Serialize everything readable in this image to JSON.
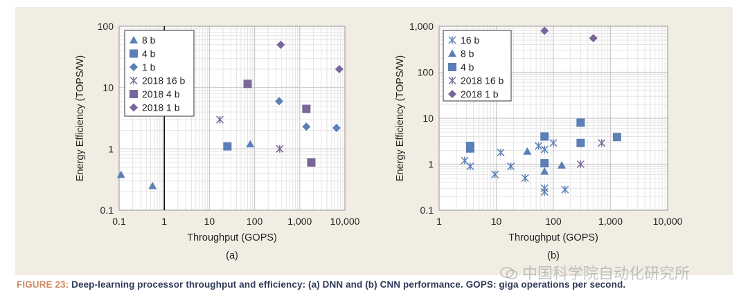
{
  "caption": {
    "label": "FIGURE 23:",
    "text": " Deep-learning processor throughput and efficiency: (a) DNN and (b) CNN performance. GOPS: giga operations per second."
  },
  "watermark": {
    "text": "中国科学院自动化研究所",
    "icon": "wechat-icon"
  },
  "colors": {
    "panel": "#f2ede3",
    "blue": "#5b7fb6",
    "purple": "#7a6699",
    "grid_major": "#c9c9c9",
    "grid_minor": "#e4e4e4"
  },
  "chart_data": [
    {
      "type": "scatter",
      "panel_label": "(a)",
      "xlabel": "Throughput (GOPS)",
      "ylabel": "Energy Efficiency (TOPS/W)",
      "xscale": "log",
      "yscale": "log",
      "xlim": [
        0.1,
        10000
      ],
      "ylim": [
        0.1,
        100
      ],
      "xticks": [
        "0.1",
        "1",
        "10",
        "100",
        "1,000",
        "10,000"
      ],
      "yticks": [
        "0.1",
        "1",
        "10",
        "100"
      ],
      "grid": true,
      "legend_position": "top-left",
      "reference_line_x": 1,
      "series": [
        {
          "name": "8 b",
          "marker": "triangle",
          "color": "#5b7fb6",
          "points": [
            [
              0.11,
              0.38
            ],
            [
              0.55,
              0.25
            ],
            [
              80,
              1.2
            ]
          ]
        },
        {
          "name": "4 b",
          "marker": "square",
          "color": "#5b7fb6",
          "points": [
            [
              25,
              1.1
            ]
          ]
        },
        {
          "name": "1 b",
          "marker": "diamond",
          "color": "#5b7fb6",
          "points": [
            [
              350,
              6
            ],
            [
              1400,
              2.3
            ],
            [
              6500,
              2.2
            ]
          ]
        },
        {
          "name": "2018 16 b",
          "marker": "asterisk",
          "color": "#7a6699",
          "points": [
            [
              17,
              3
            ],
            [
              360,
              1
            ]
          ]
        },
        {
          "name": "2018 4 b",
          "marker": "square",
          "color": "#7a6699",
          "points": [
            [
              70,
              11.5
            ],
            [
              1400,
              4.5
            ],
            [
              1800,
              0.6
            ]
          ]
        },
        {
          "name": "2018 1 b",
          "marker": "diamond",
          "color": "#7a6699",
          "points": [
            [
              380,
              50
            ],
            [
              7500,
              20
            ]
          ]
        }
      ]
    },
    {
      "type": "scatter",
      "panel_label": "(b)",
      "xlabel": "Throughput (GOPS)",
      "ylabel": "Energy Efficiency (TOPS/W)",
      "xscale": "log",
      "yscale": "log",
      "xlim": [
        1,
        10000
      ],
      "ylim": [
        0.1,
        1000
      ],
      "xticks": [
        "1",
        "10",
        "100",
        "1,000",
        "10,000"
      ],
      "yticks": [
        "0.1",
        "1",
        "10",
        "100",
        "1,000"
      ],
      "grid": true,
      "legend_position": "top-left",
      "series": [
        {
          "name": "16 b",
          "marker": "asterisk",
          "color": "#5b7fb6",
          "points": [
            [
              2.8,
              1.2
            ],
            [
              3.5,
              0.9
            ],
            [
              9.5,
              0.6
            ],
            [
              12,
              1.8
            ],
            [
              18,
              0.9
            ],
            [
              32,
              0.5
            ],
            [
              55,
              2.5
            ],
            [
              70,
              2.1
            ],
            [
              70,
              0.3
            ],
            [
              70,
              0.25
            ],
            [
              100,
              2.9
            ],
            [
              160,
              0.28
            ]
          ]
        },
        {
          "name": "8 b",
          "marker": "triangle",
          "color": "#5b7fb6",
          "points": [
            [
              35,
              1.9
            ],
            [
              70,
              0.7
            ],
            [
              140,
              0.95
            ]
          ]
        },
        {
          "name": "4 b",
          "marker": "square",
          "color": "#5b7fb6",
          "points": [
            [
              3.5,
              2.5
            ],
            [
              3.5,
              2.2
            ],
            [
              70,
              4
            ],
            [
              70,
              1.05
            ],
            [
              300,
              8
            ],
            [
              300,
              2.9
            ],
            [
              1300,
              3.9
            ]
          ]
        },
        {
          "name": "2018 16 b",
          "marker": "asterisk",
          "color": "#7a6699",
          "points": [
            [
              300,
              1
            ],
            [
              700,
              2.9
            ]
          ]
        },
        {
          "name": "2018 1 b",
          "marker": "diamond",
          "color": "#7a6699",
          "points": [
            [
              70,
              800
            ],
            [
              500,
              550
            ]
          ]
        }
      ]
    }
  ]
}
